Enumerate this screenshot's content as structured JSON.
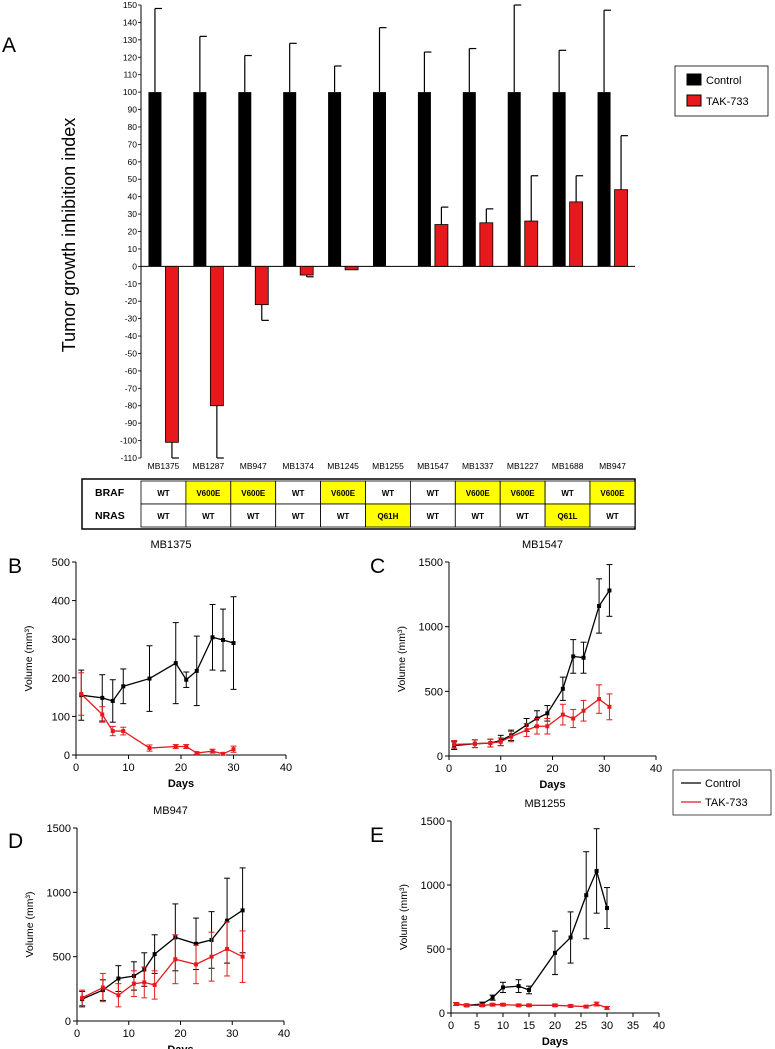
{
  "panels": {
    "a": {
      "label": "A",
      "chart_data": {
        "type": "bar",
        "ylabel": "Tumor growth inhibition index",
        "ylim": [
          -110,
          150
        ],
        "yticks": [
          -110,
          -100,
          -90,
          -80,
          -70,
          -60,
          -50,
          -40,
          -30,
          -20,
          -10,
          0,
          10,
          20,
          30,
          40,
          50,
          60,
          70,
          80,
          90,
          100,
          110,
          120,
          130,
          140,
          150
        ],
        "categories": [
          "MB1375",
          "MB1287",
          "MB947",
          "MB1374",
          "MB1245",
          "MB1255",
          "MB1547",
          "MB1337",
          "MB1227",
          "MB1688",
          "MB947"
        ],
        "series": [
          {
            "name": "Control",
            "color": "#000000",
            "values": [
              100,
              100,
              100,
              100,
              100,
              100,
              100,
              100,
              100,
              100,
              100
            ],
            "error": [
              48,
              32,
              21,
              28,
              15,
              37,
              23,
              25,
              50,
              24,
              47
            ]
          },
          {
            "name": "TAK-733",
            "color": "#e8191c",
            "values": [
              -101,
              -80,
              -22,
              -5,
              -2,
              0,
              24,
              25,
              26,
              37,
              44
            ],
            "error": [
              10,
              30,
              9,
              1,
              0,
              0,
              10,
              8,
              26,
              15,
              31
            ]
          }
        ],
        "legend": "right"
      },
      "mutation_table": {
        "rows": [
          {
            "label": "BRAF",
            "cells": [
              "WT",
              "V600E",
              "V600E",
              "WT",
              "V600E",
              "WT",
              "WT",
              "V600E",
              "V600E",
              "WT",
              "V600E"
            ]
          },
          {
            "label": "NRAS",
            "cells": [
              "WT",
              "WT",
              "WT",
              "WT",
              "WT",
              "Q61H",
              "WT",
              "WT",
              "WT",
              "Q61L",
              "WT"
            ]
          }
        ],
        "highlight_color": "#ffff00"
      }
    },
    "b": {
      "label": "B",
      "chart_data": {
        "type": "line",
        "title": "MB1375",
        "xlabel": "Days",
        "ylabel": "Volume (mm³)",
        "xlim": [
          0,
          40
        ],
        "ylim": [
          0,
          500
        ],
        "xticks": [
          0,
          10,
          20,
          30,
          40
        ],
        "yticks": [
          0,
          100,
          200,
          300,
          400,
          500
        ],
        "series": [
          {
            "name": "Control",
            "color": "#000000",
            "x": [
              1,
              5,
              7,
              9,
              14,
              19,
              21,
              23,
              26,
              28,
              30
            ],
            "y": [
              155,
              148,
              140,
              178,
              198,
              238,
              195,
              218,
              305,
              298,
              290
            ],
            "error": [
              65,
              60,
              55,
              45,
              85,
              105,
              20,
              90,
              85,
              80,
              120
            ]
          },
          {
            "name": "TAK-733",
            "color": "#e8191c",
            "x": [
              1,
              5,
              7,
              9,
              14,
              19,
              21,
              23,
              26,
              28,
              30
            ],
            "y": [
              158,
              105,
              62,
              62,
              18,
              22,
              22,
              5,
              10,
              3,
              15
            ],
            "error": [
              55,
              20,
              12,
              10,
              8,
              5,
              5,
              3,
              5,
              3,
              8
            ]
          }
        ]
      }
    },
    "c": {
      "label": "C",
      "chart_data": {
        "type": "line",
        "title": "MB1547",
        "xlabel": "Days",
        "ylabel": "Volume (mm³)",
        "xlim": [
          0,
          40
        ],
        "ylim": [
          0,
          1500
        ],
        "xticks": [
          0,
          10,
          20,
          30,
          40
        ],
        "yticks": [
          0,
          500,
          1000,
          1500
        ],
        "series": [
          {
            "name": "Control",
            "color": "#000000",
            "x": [
              1,
              5,
              8,
              10,
              12,
              15,
              17,
              19,
              22,
              24,
              26,
              29,
              31
            ],
            "y": [
              80,
              95,
              100,
              120,
              160,
              240,
              290,
              330,
              520,
              770,
              760,
              1160,
              1280
            ],
            "error": [
              30,
              30,
              30,
              40,
              40,
              50,
              60,
              60,
              90,
              130,
              120,
              210,
              200
            ]
          },
          {
            "name": "TAK-733",
            "color": "#e8191c",
            "x": [
              1,
              5,
              8,
              10,
              12,
              15,
              17,
              19,
              22,
              24,
              26,
              29,
              31
            ],
            "y": [
              90,
              95,
              100,
              110,
              150,
              200,
              230,
              230,
              320,
              290,
              350,
              440,
              380
            ],
            "error": [
              30,
              30,
              30,
              30,
              40,
              50,
              60,
              60,
              80,
              70,
              80,
              110,
              100
            ]
          }
        ]
      }
    },
    "d": {
      "label": "D",
      "chart_data": {
        "type": "line",
        "title": "MB947",
        "xlabel": "Days",
        "ylabel": "Volume (mm³)",
        "xlim": [
          0,
          40
        ],
        "ylim": [
          0,
          1500
        ],
        "xticks": [
          0,
          10,
          20,
          30,
          40
        ],
        "yticks": [
          0,
          500,
          1000,
          1500
        ],
        "series": [
          {
            "name": "Control",
            "color": "#000000",
            "x": [
              1,
              5,
              8,
              11,
              13,
              15,
              19,
              23,
              26,
              29,
              32
            ],
            "y": [
              170,
              240,
              330,
              350,
              400,
              520,
              650,
              600,
              630,
              780,
              860
            ],
            "error": [
              60,
              80,
              100,
              110,
              130,
              150,
              260,
              200,
              220,
              330,
              330
            ]
          },
          {
            "name": "TAK-733",
            "color": "#e8191c",
            "x": [
              1,
              5,
              8,
              11,
              13,
              15,
              19,
              23,
              26,
              29,
              32
            ],
            "y": [
              180,
              260,
              200,
              290,
              300,
              280,
              480,
              440,
              500,
              560,
              500
            ],
            "error": [
              60,
              110,
              90,
              100,
              120,
              110,
              190,
              150,
              190,
              210,
              200
            ]
          }
        ]
      }
    },
    "e": {
      "label": "E",
      "chart_data": {
        "type": "line",
        "title": "MB1255",
        "xlabel": "Days",
        "ylabel": "Volume (mm³)",
        "xlim": [
          0,
          40
        ],
        "ylim": [
          0,
          1500
        ],
        "xticks": [
          0,
          5,
          10,
          15,
          20,
          25,
          30,
          35,
          40
        ],
        "yticks": [
          0,
          500,
          1000,
          1500
        ],
        "series": [
          {
            "name": "Control",
            "color": "#000000",
            "x": [
              1,
              3,
              6,
              8,
              10,
              13,
              15,
              20,
              23,
              26,
              28,
              30
            ],
            "y": [
              70,
              60,
              70,
              120,
              200,
              210,
              180,
              470,
              590,
              920,
              1110,
              820
            ],
            "error": [
              10,
              10,
              15,
              20,
              40,
              50,
              30,
              170,
              200,
              340,
              330,
              160
            ]
          },
          {
            "name": "TAK-733",
            "color": "#e8191c",
            "x": [
              1,
              3,
              6,
              8,
              10,
              13,
              15,
              20,
              23,
              26,
              28,
              30
            ],
            "y": [
              70,
              60,
              60,
              65,
              65,
              60,
              60,
              60,
              55,
              50,
              70,
              40
            ],
            "error": [
              10,
              10,
              10,
              10,
              10,
              10,
              10,
              10,
              10,
              10,
              15,
              10
            ]
          }
        ]
      }
    }
  },
  "legend_bar": {
    "items": [
      {
        "name": "Control",
        "color": "#000000"
      },
      {
        "name": "TAK-733",
        "color": "#e8191c"
      }
    ]
  },
  "legend_line": {
    "items": [
      {
        "name": "Control",
        "color": "#000000"
      },
      {
        "name": "TAK-733",
        "color": "#e8191c"
      }
    ]
  }
}
